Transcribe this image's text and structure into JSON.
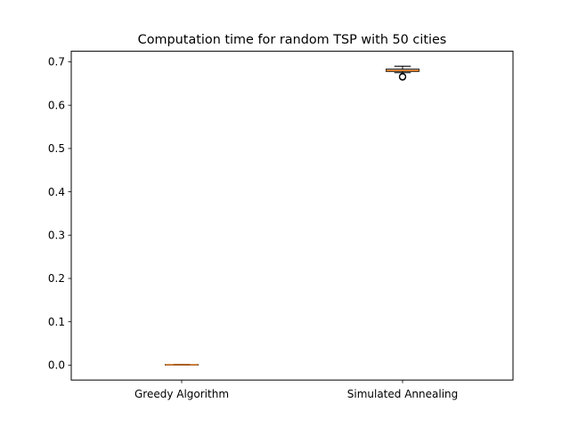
{
  "chart_data": {
    "type": "box",
    "title": "Computation time for random TSP with 50 cities",
    "xlabel": "",
    "ylabel": "",
    "categories": [
      "Greedy Algorithm",
      "Simulated Annealing"
    ],
    "boxes": [
      {
        "name": "Greedy Algorithm",
        "whisker_low": 0.0005,
        "q1": 0.0008,
        "median": 0.001,
        "q3": 0.0012,
        "whisker_high": 0.0015,
        "outliers": []
      },
      {
        "name": "Simulated Annealing",
        "whisker_low": 0.675,
        "q1": 0.678,
        "median": 0.68,
        "q3": 0.683,
        "whisker_high": 0.69,
        "outliers": [
          0.665,
          0.666
        ]
      }
    ],
    "ylim": [
      -0.0345,
      0.7245
    ],
    "yticks": [
      0.0,
      0.1,
      0.2,
      0.3,
      0.4,
      0.5,
      0.6,
      0.7
    ],
    "ytick_labels": [
      "0.0",
      "0.1",
      "0.2",
      "0.3",
      "0.4",
      "0.5",
      "0.6",
      "0.7"
    ],
    "grid": false,
    "colors": {
      "box": "#000000",
      "median": "#ff7f0e",
      "outlier": "#000000"
    }
  }
}
